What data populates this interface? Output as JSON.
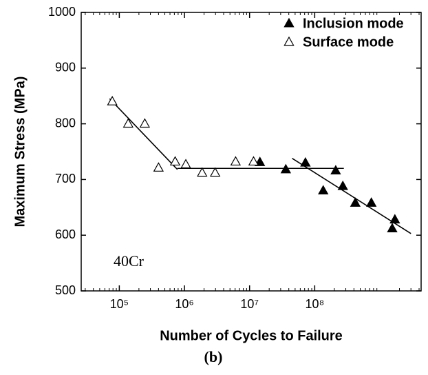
{
  "chart_data": {
    "type": "scatter",
    "xlabel": "Number of Cycles to Failure",
    "ylabel": "Maximum Stress (MPa)",
    "annotation": "40Cr",
    "caption": "(b)",
    "xscale": "log",
    "xlim": [
      26000,
      4300000000
    ],
    "ylim": [
      500,
      1000
    ],
    "xticks": [
      {
        "value": 100000,
        "label": "10⁵"
      },
      {
        "value": 1000000,
        "label": "10⁶"
      },
      {
        "value": 10000000,
        "label": "10⁷"
      },
      {
        "value": 100000000,
        "label": "10⁸"
      }
    ],
    "yticks": [
      500,
      600,
      700,
      800,
      900,
      1000
    ],
    "legend": "upper right",
    "series": [
      {
        "name": "Inclusion mode",
        "color": "#000000",
        "marker": "filled-triangle",
        "x": [
          14400000,
          36000000,
          72000000,
          135000000,
          210000000,
          270000000,
          420000000,
          740000000,
          1550000000,
          1700000000
        ],
        "values": [
          731,
          718,
          730,
          680,
          716,
          688,
          658,
          658,
          612,
          628
        ]
      },
      {
        "name": "Surface mode",
        "color": "#000000",
        "marker": "open-triangle",
        "x": [
          78000,
          137000,
          246000,
          400000,
          720000,
          1050000,
          1870000,
          2960000,
          6100000,
          11500000
        ],
        "values": [
          840,
          800,
          800,
          721,
          732,
          727,
          712,
          712,
          732,
          732
        ]
      }
    ],
    "fit_lines": [
      {
        "x": [
          71000,
          780000
        ],
        "values": [
          845,
          718
        ]
      },
      {
        "x": [
          780000,
          280000000
        ],
        "values": [
          720,
          720
        ]
      },
      {
        "x": [
          45000000,
          3000000000
        ],
        "values": [
          738,
          603
        ]
      }
    ]
  }
}
